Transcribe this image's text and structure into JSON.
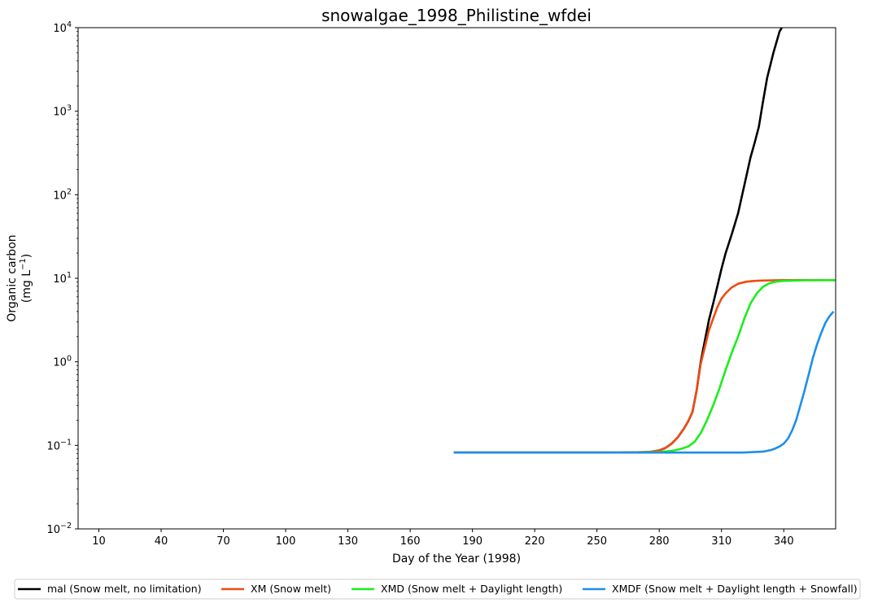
{
  "chart_data": {
    "type": "line",
    "title": "snowalgae_1998_Philistine_wfdei",
    "xlabel": "Day of the Year (1998)",
    "ylabel_line1": "Organic carbon",
    "ylabel_line2": "(mg L",
    "ylabel_sup": "−1",
    "ylabel_close": ")",
    "xlim": [
      0,
      365
    ],
    "ylim": [
      0.01,
      10000
    ],
    "yscale": "log",
    "grid": false,
    "legend_position": "bottom",
    "x_ticks": [
      10,
      40,
      70,
      100,
      130,
      160,
      190,
      220,
      250,
      280,
      310,
      340
    ],
    "x_tick_labels": [
      "10",
      "40",
      "70",
      "100",
      "130",
      "160",
      "190",
      "220",
      "250",
      "280",
      "310",
      "340"
    ],
    "y_ticks": [
      0.01,
      0.1,
      1,
      10,
      100,
      1000,
      10000
    ],
    "y_tick_exponents": [
      "−2",
      "−1",
      "0",
      "1",
      "2",
      "3",
      "4"
    ],
    "y_tick_base": "10",
    "series": [
      {
        "name": "mal (Snow melt, no limitation)",
        "color": "#000000",
        "x": [
          181,
          260,
          275,
          280,
          283,
          286,
          289,
          292,
          294,
          296,
          298,
          300,
          302,
          304,
          306,
          308,
          310,
          312,
          315,
          318,
          321,
          324,
          326,
          328,
          330,
          332,
          335,
          338,
          340
        ],
        "y": [
          0.082,
          0.082,
          0.083,
          0.087,
          0.093,
          0.105,
          0.125,
          0.16,
          0.195,
          0.25,
          0.45,
          1.0,
          1.8,
          3.2,
          5.0,
          8.0,
          13,
          20,
          34,
          60,
          130,
          280,
          420,
          650,
          1300,
          2500,
          5000,
          9000,
          11000
        ]
      },
      {
        "name": "XM (Snow melt)",
        "color": "#f04b12",
        "x": [
          181,
          260,
          275,
          280,
          283,
          286,
          289,
          292,
          294,
          296,
          298,
          300,
          302,
          304,
          306,
          308,
          310,
          312,
          315,
          318,
          322,
          326,
          330,
          335,
          340,
          350,
          365
        ],
        "y": [
          0.082,
          0.082,
          0.083,
          0.087,
          0.093,
          0.105,
          0.125,
          0.16,
          0.195,
          0.25,
          0.45,
          0.95,
          1.5,
          2.4,
          3.3,
          4.5,
          5.7,
          6.6,
          7.8,
          8.6,
          9.1,
          9.3,
          9.4,
          9.45,
          9.5,
          9.5,
          9.5
        ]
      },
      {
        "name": "XMD (Snow melt + Daylight length)",
        "color": "#1aee1a",
        "x": [
          181,
          270,
          280,
          286,
          290,
          294,
          297,
          300,
          303,
          306,
          309,
          312,
          315,
          318,
          321,
          324,
          327,
          330,
          333,
          336,
          340,
          345,
          350,
          365
        ],
        "y": [
          0.082,
          0.082,
          0.083,
          0.086,
          0.09,
          0.097,
          0.11,
          0.14,
          0.2,
          0.3,
          0.48,
          0.8,
          1.3,
          2.0,
          3.3,
          5.0,
          6.6,
          7.9,
          8.7,
          9.1,
          9.3,
          9.4,
          9.45,
          9.5
        ]
      },
      {
        "name": "XMDF (Snow melt + Daylight length + Snowfall)",
        "color": "#1e8ee8",
        "x": [
          181,
          260,
          300,
          320,
          330,
          334,
          336,
          338,
          340,
          342,
          344,
          346,
          348,
          350,
          352,
          354,
          356,
          358,
          360,
          362,
          364
        ],
        "y": [
          0.082,
          0.082,
          0.082,
          0.082,
          0.084,
          0.088,
          0.092,
          0.097,
          0.105,
          0.12,
          0.15,
          0.2,
          0.3,
          0.45,
          0.7,
          1.1,
          1.6,
          2.2,
          2.9,
          3.5,
          4.0
        ]
      }
    ]
  }
}
